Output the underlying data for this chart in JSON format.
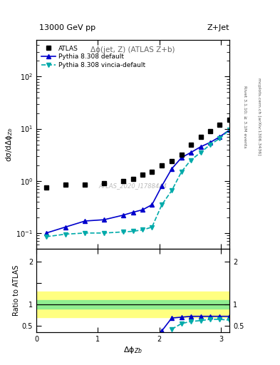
{
  "title_left": "13000 GeV pp",
  "title_right": "Z+Jet",
  "panel_title": "Δϕ(jet, Z) (ATLAS Z+b)",
  "watermark": "ATLAS_2020_I1788444",
  "ylabel_main": "dσ/dΔϕ$_{Zb}$",
  "ylabel_ratio": "Ratio to ATLAS",
  "xlabel": "Δϕ$_{Zb}$",
  "right_label_top": "Rivet 3.1.10; ≥ 3.1M events",
  "right_label_bot": "mcplots.cern.ch [arXiv:1306.3436]",
  "xlim": [
    0.0,
    3.14159
  ],
  "ylim_main": [
    0.05,
    500
  ],
  "ylim_ratio": [
    0.35,
    2.3
  ],
  "atlas_x": [
    0.16,
    0.47,
    0.79,
    1.1,
    1.41,
    1.57,
    1.73,
    1.88,
    2.04,
    2.2,
    2.36,
    2.51,
    2.67,
    2.83,
    2.98,
    3.14
  ],
  "atlas_y": [
    0.75,
    0.85,
    0.85,
    0.9,
    1.0,
    1.1,
    1.3,
    1.5,
    2.0,
    2.4,
    3.2,
    5.0,
    7.0,
    9.0,
    12.0,
    15.0
  ],
  "py8_default_x": [
    0.16,
    0.47,
    0.79,
    1.1,
    1.41,
    1.57,
    1.73,
    1.88,
    2.04,
    2.2,
    2.36,
    2.51,
    2.67,
    2.83,
    2.98,
    3.14
  ],
  "py8_default_y": [
    0.1,
    0.13,
    0.17,
    0.18,
    0.22,
    0.25,
    0.28,
    0.35,
    0.8,
    1.7,
    2.8,
    3.5,
    4.5,
    5.5,
    7.0,
    9.5
  ],
  "py8_vincia_x": [
    0.16,
    0.47,
    0.79,
    1.1,
    1.41,
    1.57,
    1.73,
    1.88,
    2.04,
    2.2,
    2.36,
    2.51,
    2.67,
    2.83,
    2.98,
    3.14
  ],
  "py8_vincia_y": [
    0.085,
    0.095,
    0.1,
    0.1,
    0.105,
    0.108,
    0.115,
    0.13,
    0.35,
    0.65,
    1.5,
    2.5,
    3.5,
    5.0,
    6.5,
    9.5
  ],
  "ratio_py8_default_x": [
    2.04,
    2.2,
    2.36,
    2.51,
    2.67,
    2.83,
    2.98,
    3.14
  ],
  "ratio_py8_default_y": [
    0.38,
    0.68,
    0.7,
    0.72,
    0.72,
    0.72,
    0.72,
    0.72
  ],
  "ratio_py8_vincia_x": [
    2.2,
    2.36,
    2.51,
    2.67,
    2.83,
    2.98,
    3.14
  ],
  "ratio_py8_vincia_y": [
    0.42,
    0.55,
    0.6,
    0.62,
    0.65,
    0.65,
    0.63
  ],
  "green_band_lower": 0.9,
  "green_band_upper": 1.1,
  "yellow_band_lower": 0.7,
  "yellow_band_upper": 1.3,
  "atlas_color": "black",
  "py8_default_color": "#0000cc",
  "py8_vincia_color": "#00aaaa",
  "marker_size": 4,
  "line_width": 1.2
}
